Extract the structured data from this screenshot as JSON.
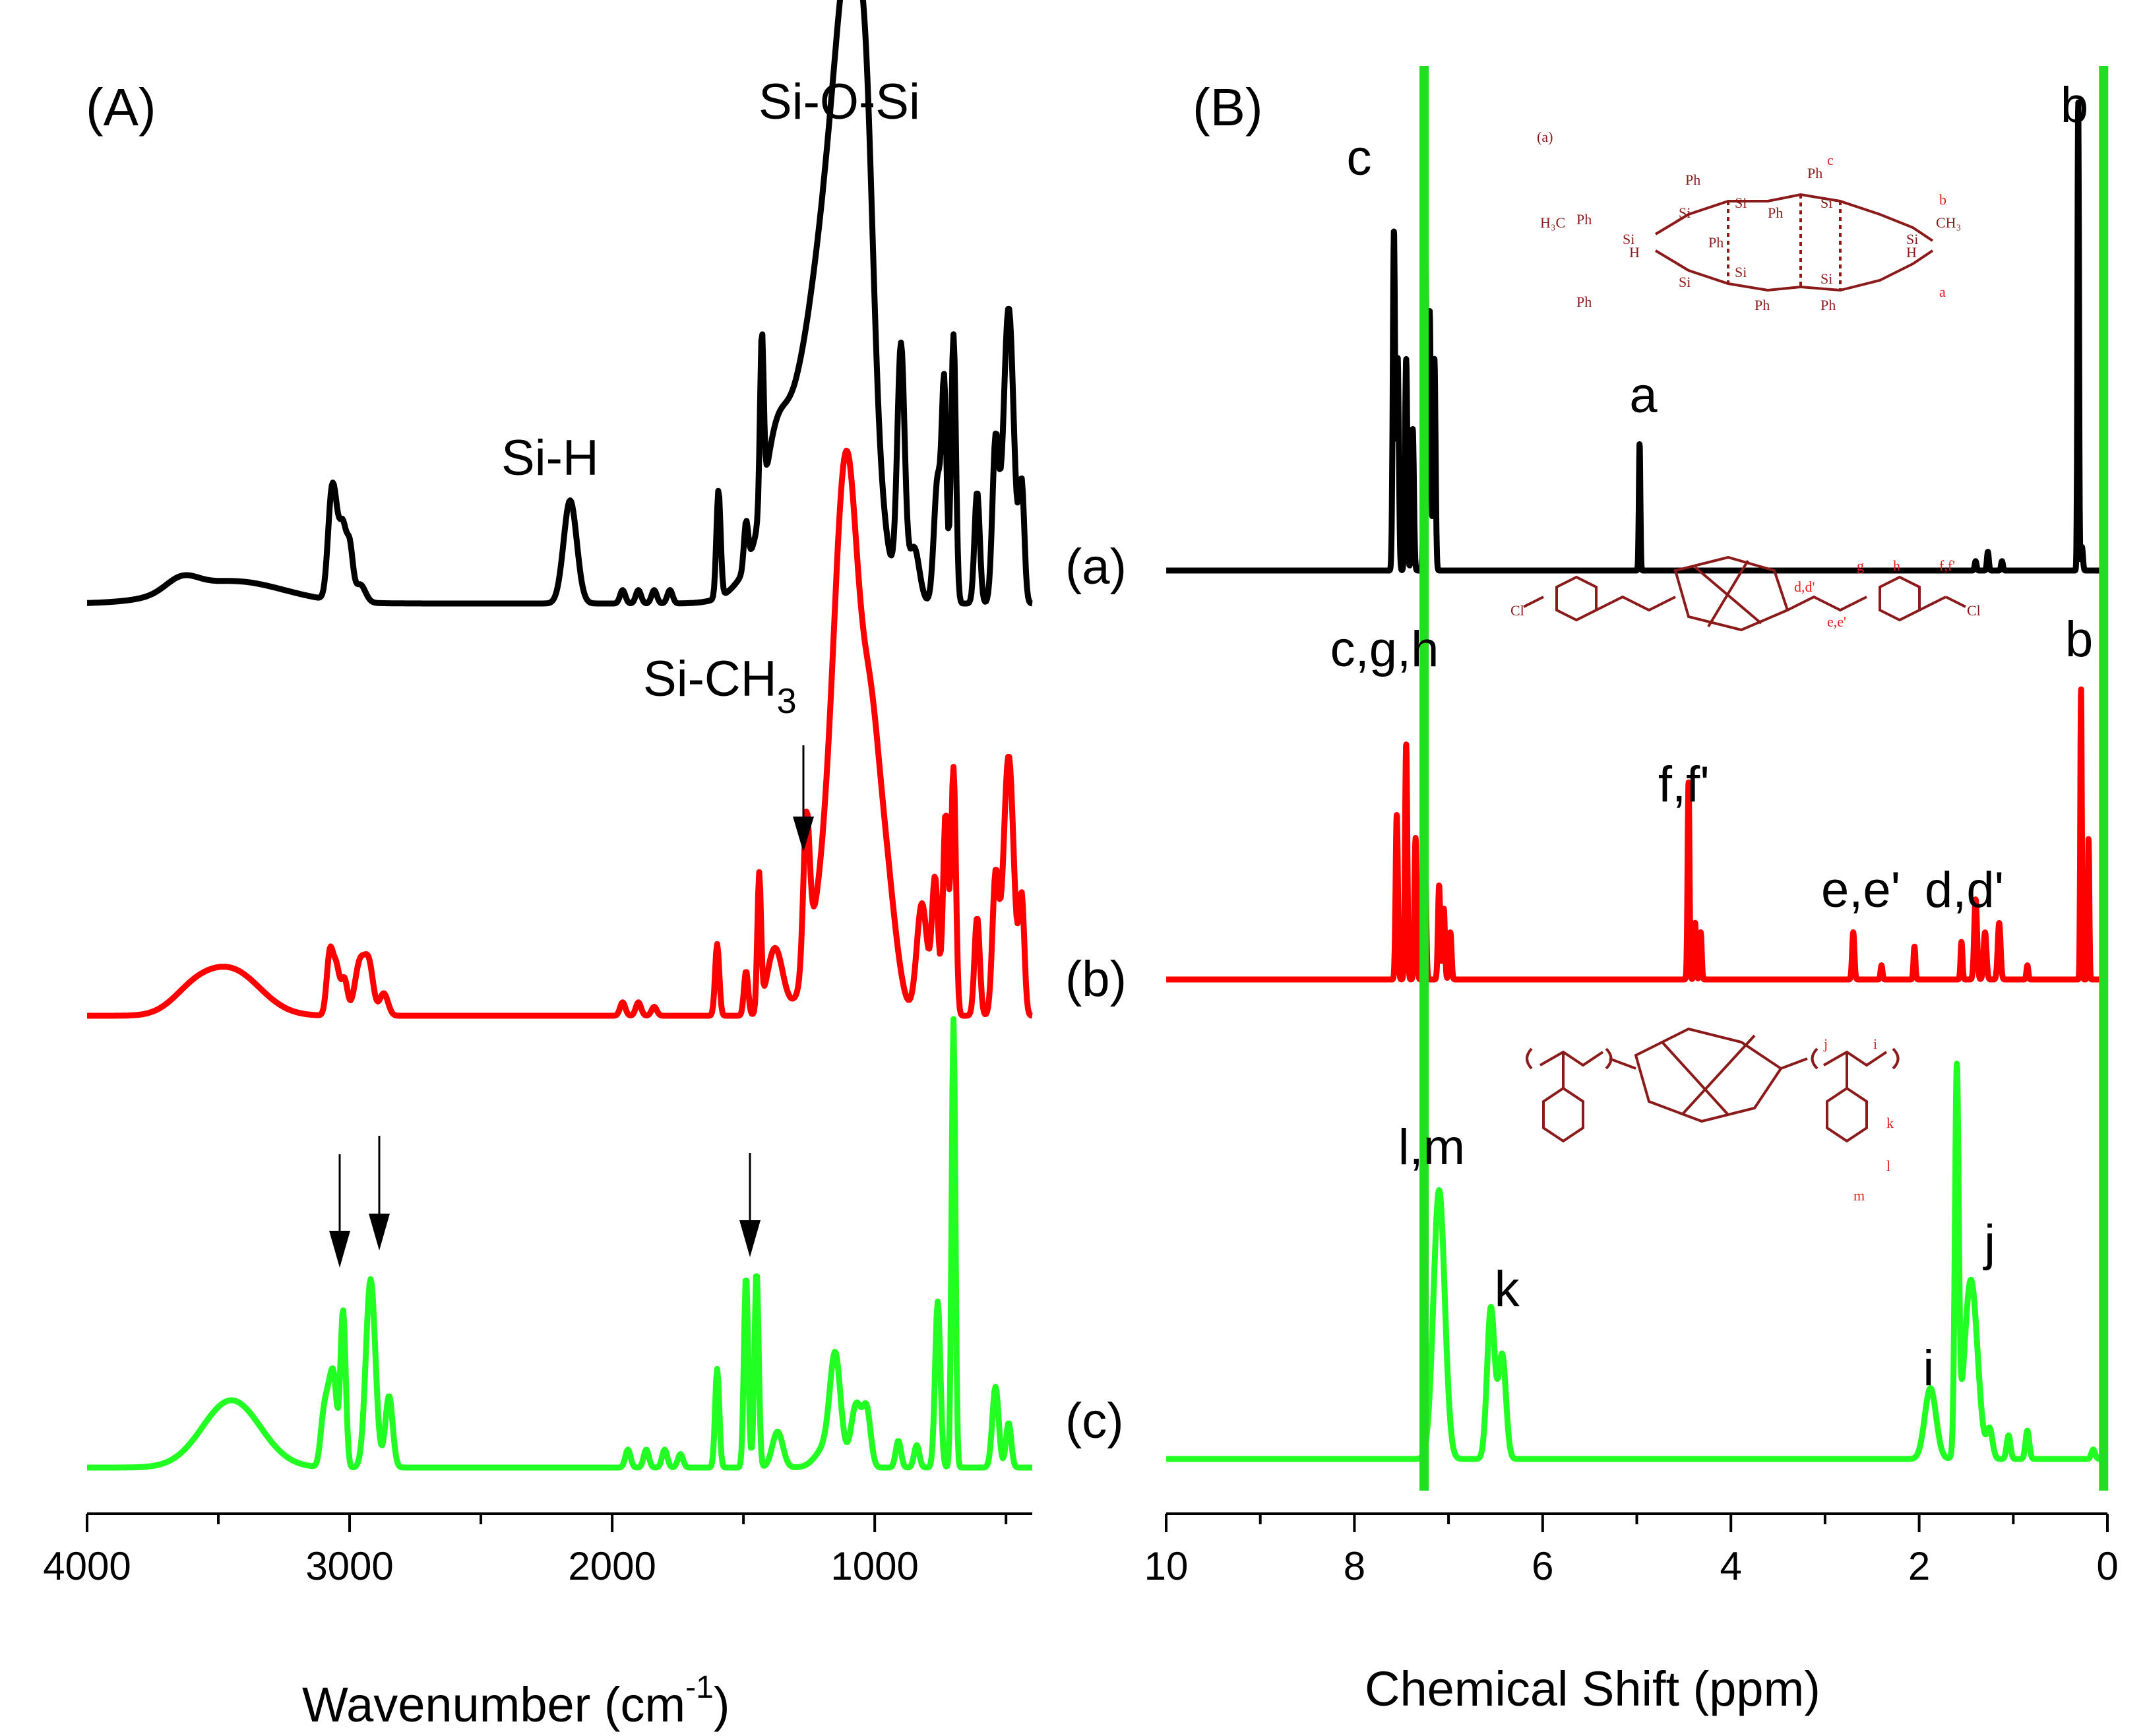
{
  "chart_data": [
    {
      "type": "line",
      "panel_label": "(A)",
      "xlabel_main": "Wavenumber (cm",
      "xlabel_sup": "-1",
      "xlabel_close": ")",
      "xlim": [
        4000,
        400
      ],
      "x_reversed": true,
      "xticks": [
        "4000",
        "3000",
        "2000",
        "1000"
      ],
      "xtick_values": [
        4000,
        3000,
        2000,
        1000
      ],
      "annotations": [
        {
          "text": "Si-O-Si",
          "x": 1100
        },
        {
          "text": "Si-H",
          "x": 2160
        },
        {
          "text": "Si-CH",
          "sub": "3",
          "x": 1260
        }
      ],
      "series": [
        {
          "label": "(a)",
          "color": "#000000",
          "peaks": [
            [
              3640,
              0.03,
              60
            ],
            [
              3450,
              0.05,
              200
            ],
            [
              3070,
              0.2,
              14
            ],
            [
              3050,
              0.13,
              14
            ],
            [
              3025,
              0.14,
              12
            ],
            [
              3000,
              0.12,
              12
            ],
            [
              2960,
              0.04,
              20
            ],
            [
              2160,
              0.23,
              25
            ],
            [
              1960,
              0.03,
              10
            ],
            [
              1900,
              0.03,
              10
            ],
            [
              1840,
              0.03,
              10
            ],
            [
              1780,
              0.03,
              10
            ],
            [
              1595,
              0.24,
              8
            ],
            [
              1490,
              0.1,
              8
            ],
            [
              1430,
              0.38,
              7
            ],
            [
              1380,
              0.12,
              40
            ],
            [
              1250,
              0.45,
              130
            ],
            [
              1130,
              0.64,
              80
            ],
            [
              1075,
              0.7,
              55
            ],
            [
              1030,
              0.3,
              25
            ],
            [
              900,
              0.55,
              14
            ],
            [
              850,
              0.12,
              20
            ],
            [
              760,
              0.28,
              14
            ],
            [
              735,
              0.45,
              9
            ],
            [
              700,
              0.6,
              9
            ],
            [
              610,
              0.25,
              10
            ],
            [
              540,
              0.35,
              12
            ],
            [
              490,
              0.66,
              20
            ],
            [
              440,
              0.25,
              10
            ]
          ]
        },
        {
          "label": "(b)",
          "color": "#ff0000",
          "peaks": [
            [
              3600,
              0.04,
              80
            ],
            [
              3450,
              0.1,
              110
            ],
            [
              3075,
              0.14,
              12
            ],
            [
              3050,
              0.1,
              12
            ],
            [
              3020,
              0.08,
              12
            ],
            [
              2960,
              0.12,
              20
            ],
            [
              2925,
              0.1,
              16
            ],
            [
              2870,
              0.05,
              16
            ],
            [
              1960,
              0.03,
              10
            ],
            [
              1900,
              0.03,
              10
            ],
            [
              1840,
              0.02,
              10
            ],
            [
              1600,
              0.16,
              8
            ],
            [
              1490,
              0.1,
              8
            ],
            [
              1440,
              0.3,
              7
            ],
            [
              1380,
              0.15,
              30
            ],
            [
              1260,
              0.33,
              12
            ],
            [
              1180,
              0.3,
              60
            ],
            [
              1120,
              0.8,
              40
            ],
            [
              1080,
              0.45,
              35
            ],
            [
              1020,
              0.52,
              35
            ],
            [
              960,
              0.3,
              40
            ],
            [
              820,
              0.25,
              20
            ],
            [
              770,
              0.3,
              12
            ],
            [
              730,
              0.45,
              10
            ],
            [
              700,
              0.55,
              9
            ],
            [
              610,
              0.22,
              10
            ],
            [
              540,
              0.3,
              12
            ],
            [
              490,
              0.58,
              20
            ],
            [
              440,
              0.25,
              10
            ]
          ]
        },
        {
          "label": "(c)",
          "color": "#22ff22",
          "peaks": [
            [
              3450,
              0.15,
              110
            ],
            [
              3100,
              0.1,
              12
            ],
            [
              3080,
              0.12,
              12
            ],
            [
              3060,
              0.18,
              12
            ],
            [
              3025,
              0.35,
              10
            ],
            [
              2920,
              0.42,
              18
            ],
            [
              2850,
              0.16,
              14
            ],
            [
              1940,
              0.04,
              10
            ],
            [
              1870,
              0.04,
              10
            ],
            [
              1800,
              0.04,
              10
            ],
            [
              1740,
              0.03,
              10
            ],
            [
              1600,
              0.22,
              8
            ],
            [
              1490,
              0.43,
              8
            ],
            [
              1450,
              0.44,
              8
            ],
            [
              1370,
              0.08,
              20
            ],
            [
              1180,
              0.05,
              40
            ],
            [
              1150,
              0.22,
              20
            ],
            [
              1070,
              0.14,
              20
            ],
            [
              1030,
              0.12,
              15
            ],
            [
              910,
              0.06,
              10
            ],
            [
              840,
              0.05,
              10
            ],
            [
              760,
              0.37,
              10
            ],
            [
              700,
              1.0,
              7
            ],
            [
              540,
              0.18,
              12
            ],
            [
              490,
              0.1,
              10
            ]
          ]
        }
      ]
    },
    {
      "type": "line",
      "panel_label": "(B)",
      "xlabel": "Chemical Shift (ppm)",
      "xlim": [
        10,
        0
      ],
      "x_reversed": true,
      "xticks": [
        "10",
        "8",
        "6",
        "4",
        "2",
        "0"
      ],
      "xtick_values": [
        10,
        8,
        6,
        4,
        2,
        0
      ],
      "vertical_lines": [
        {
          "x": 7.26,
          "color": "#22dd22"
        },
        {
          "x": 0.04,
          "color": "#22dd22"
        }
      ],
      "series": [
        {
          "label": "(a)",
          "color": "#000000",
          "peak_labels": [
            {
              "text": "c",
              "x": 7.95
            },
            {
              "text": "a",
              "x": 4.93
            },
            {
              "text": "b",
              "x": 0.35
            }
          ],
          "peaks": [
            [
              7.58,
              0.72,
              0.012
            ],
            [
              7.54,
              0.45,
              0.012
            ],
            [
              7.45,
              0.45,
              0.012
            ],
            [
              7.38,
              0.3,
              0.012
            ],
            [
              7.25,
              0.8,
              0.012
            ],
            [
              7.2,
              0.55,
              0.012
            ],
            [
              7.15,
              0.45,
              0.012
            ],
            [
              4.97,
              0.27,
              0.008
            ],
            [
              1.4,
              0.02,
              0.01
            ],
            [
              1.27,
              0.04,
              0.01
            ],
            [
              1.12,
              0.02,
              0.01
            ],
            [
              0.31,
              1.0,
              0.008
            ],
            [
              0.27,
              0.05,
              0.01
            ]
          ]
        },
        {
          "label": "(b)",
          "color": "#ff0000",
          "peak_labels": [
            {
              "text": "c,g,h",
              "x": 7.68
            },
            {
              "text": "f,f'",
              "x": 4.5
            },
            {
              "text": "e,e'",
              "x": 2.62
            },
            {
              "text": "d,d'",
              "x": 1.52
            },
            {
              "text": "b",
              "x": 0.3
            }
          ],
          "peaks": [
            [
              7.55,
              0.35,
              0.012
            ],
            [
              7.45,
              0.5,
              0.012
            ],
            [
              7.35,
              0.3,
              0.012
            ],
            [
              7.25,
              0.25,
              0.012
            ],
            [
              7.1,
              0.2,
              0.012
            ],
            [
              7.05,
              0.15,
              0.012
            ],
            [
              6.98,
              0.1,
              0.012
            ],
            [
              4.45,
              0.42,
              0.01
            ],
            [
              4.38,
              0.12,
              0.01
            ],
            [
              4.32,
              0.1,
              0.01
            ],
            [
              2.7,
              0.1,
              0.012
            ],
            [
              2.4,
              0.03,
              0.01
            ],
            [
              2.05,
              0.07,
              0.01
            ],
            [
              1.55,
              0.08,
              0.01
            ],
            [
              1.4,
              0.17,
              0.015
            ],
            [
              1.3,
              0.1,
              0.015
            ],
            [
              1.15,
              0.12,
              0.015
            ],
            [
              0.85,
              0.03,
              0.01
            ],
            [
              0.28,
              0.62,
              0.008
            ],
            [
              0.2,
              0.3,
              0.008
            ]
          ]
        },
        {
          "label": "(c)",
          "color": "#22ff22",
          "peak_labels": [
            {
              "text": "l,m",
              "x": 7.18
            },
            {
              "text": "k",
              "x": 6.38
            },
            {
              "text": "i",
              "x": 1.9
            },
            {
              "text": "j",
              "x": 1.25
            }
          ],
          "peaks": [
            [
              7.1,
              0.57,
              0.06
            ],
            [
              6.55,
              0.32,
              0.04
            ],
            [
              6.43,
              0.22,
              0.04
            ],
            [
              1.88,
              0.15,
              0.06
            ],
            [
              1.6,
              0.8,
              0.02
            ],
            [
              1.45,
              0.38,
              0.07
            ],
            [
              1.25,
              0.06,
              0.03
            ],
            [
              1.05,
              0.05,
              0.02
            ],
            [
              0.85,
              0.06,
              0.02
            ],
            [
              0.15,
              0.02,
              0.02
            ]
          ]
        }
      ]
    }
  ]
}
